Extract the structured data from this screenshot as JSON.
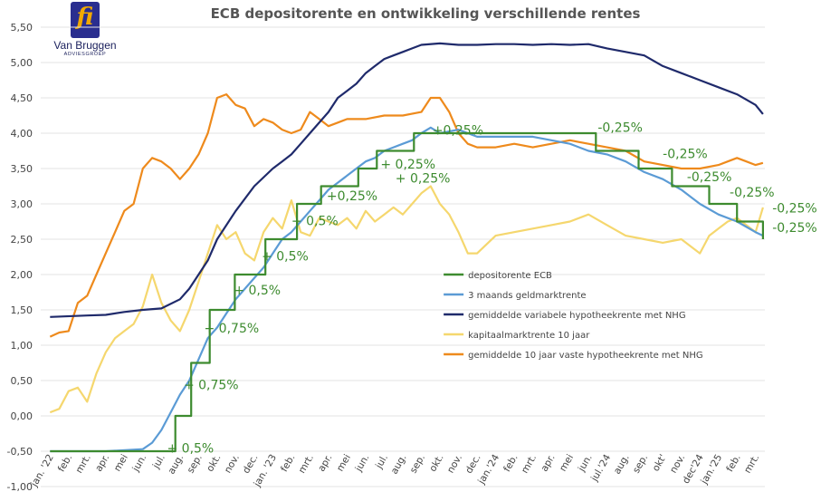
{
  "logo": {
    "mark": "fi",
    "name": "Van Bruggen",
    "sub": "ADVIESGROEP"
  },
  "chart_data": {
    "type": "line",
    "title": "ECB depositorente en ontwikkeling verschillende rentes",
    "xlabel": "",
    "ylabel": "",
    "ylim": [
      -1.0,
      5.5
    ],
    "y_ticks": [
      "-1,00",
      "-0,50",
      "0,00",
      "0,50",
      "1,00",
      "1,50",
      "2,00",
      "2,50",
      "3,00",
      "3,50",
      "4,00",
      "4,50",
      "5,00",
      "5,50"
    ],
    "x_ticks": [
      "jan. '22",
      "feb.",
      "mrt.",
      "apr.",
      "mei",
      "jun.",
      "jul.",
      "aug.",
      "sep.",
      "okt.",
      "nov.",
      "dec.",
      "jan. '23",
      "feb.",
      "mrt.",
      "apr.",
      "mei",
      "jun.",
      "jul.",
      "aug.",
      "sep.",
      "okt.",
      "nov.",
      "dec.",
      "jan.'24",
      "feb.",
      "mrt.",
      "apr.",
      "mei",
      "jun.",
      "jul.'24",
      "aug.",
      "sep.",
      "okt'",
      "nov.",
      "dec'24",
      "jan.'25",
      "feb.",
      "mrt."
    ],
    "grid": true,
    "legend_position": "right",
    "x_unit": "month index (0 = jan. '22)",
    "series": [
      {
        "name": "depositorente ECB",
        "color": "#3d8b2f",
        "step": true,
        "x": [
          0,
          6.75,
          7.6,
          8.6,
          9.95,
          11.6,
          13.3,
          14.6,
          16.6,
          17.6,
          19.6,
          20.6,
          29.4,
          31.7,
          33.5,
          35.5,
          37.0,
          38.4
        ],
        "y": [
          -0.5,
          0.0,
          0.75,
          1.5,
          2.0,
          2.5,
          3.0,
          3.25,
          3.5,
          3.75,
          4.0,
          4.0,
          3.75,
          3.5,
          3.25,
          3.0,
          2.75,
          2.5
        ]
      },
      {
        "name": "3 maands geldmarktrente",
        "color": "#5b9bd5",
        "x": [
          0,
          3,
          5,
          5.5,
          6,
          6.5,
          7,
          7.5,
          8,
          8.5,
          9,
          9.5,
          10,
          10.5,
          11,
          11.5,
          12,
          12.5,
          13,
          13.5,
          14,
          14.5,
          15,
          15.5,
          16,
          16.5,
          17,
          17.5,
          18,
          18.5,
          19,
          19.5,
          20,
          20.5,
          21,
          22,
          23,
          24,
          25,
          26,
          27,
          28,
          29,
          30,
          31,
          32,
          33,
          34,
          35,
          36,
          37,
          38,
          38.4
        ],
        "y": [
          -0.5,
          -0.5,
          -0.47,
          -0.38,
          -0.2,
          0.05,
          0.3,
          0.5,
          0.8,
          1.1,
          1.25,
          1.45,
          1.65,
          1.8,
          1.95,
          2.1,
          2.3,
          2.5,
          2.6,
          2.75,
          2.9,
          3.05,
          3.2,
          3.3,
          3.4,
          3.5,
          3.6,
          3.65,
          3.75,
          3.8,
          3.85,
          3.9,
          4.0,
          4.08,
          4.0,
          4.05,
          3.95,
          3.95,
          3.95,
          3.95,
          3.9,
          3.85,
          3.75,
          3.7,
          3.6,
          3.45,
          3.35,
          3.2,
          3.0,
          2.85,
          2.75,
          2.6,
          2.55
        ]
      },
      {
        "name": "gemiddelde variabele hypotheekrente met NHG",
        "color": "#1f2a6b",
        "x": [
          0,
          2,
          3,
          4,
          5,
          6,
          7,
          7.5,
          8,
          8.5,
          9,
          10,
          11,
          12,
          12.5,
          13,
          13.5,
          14,
          15,
          15.5,
          16,
          16.5,
          17,
          17.5,
          18,
          18.5,
          19,
          19.5,
          20,
          21,
          22,
          23,
          24,
          25,
          26,
          27,
          28,
          29,
          30,
          31,
          32,
          33,
          34,
          35,
          36,
          37,
          38,
          38.4
        ],
        "y": [
          1.4,
          1.42,
          1.43,
          1.47,
          1.5,
          1.52,
          1.65,
          1.8,
          2.0,
          2.2,
          2.5,
          2.9,
          3.25,
          3.5,
          3.6,
          3.7,
          3.85,
          4.0,
          4.3,
          4.5,
          4.6,
          4.7,
          4.85,
          4.95,
          5.05,
          5.1,
          5.15,
          5.2,
          5.25,
          5.27,
          5.25,
          5.25,
          5.26,
          5.26,
          5.25,
          5.26,
          5.25,
          5.26,
          5.2,
          5.15,
          5.1,
          4.95,
          4.85,
          4.75,
          4.65,
          4.55,
          4.4,
          4.27
        ]
      },
      {
        "name": "kapitaalmarktrente 10 jaar",
        "color": "#f5d76e",
        "x": [
          0,
          0.5,
          1,
          1.5,
          2,
          2.5,
          3,
          3.5,
          4,
          4.5,
          5,
          5.5,
          6,
          6.5,
          7,
          7.5,
          8,
          8.5,
          9,
          9.5,
          10,
          10.5,
          11,
          11.5,
          12,
          12.5,
          13,
          13.5,
          14,
          14.5,
          15,
          15.5,
          16,
          16.5,
          17,
          17.5,
          18,
          18.5,
          19,
          19.5,
          20,
          20.5,
          21,
          21.5,
          22,
          22.5,
          23,
          24,
          25,
          26,
          27,
          28,
          29,
          30,
          31,
          32,
          33,
          34,
          35,
          35.5,
          36,
          36.5,
          37,
          37.5,
          38,
          38.4
        ],
        "y": [
          0.05,
          0.1,
          0.35,
          0.4,
          0.2,
          0.6,
          0.9,
          1.1,
          1.2,
          1.3,
          1.55,
          2.0,
          1.6,
          1.35,
          1.2,
          1.5,
          1.9,
          2.3,
          2.7,
          2.5,
          2.6,
          2.3,
          2.2,
          2.6,
          2.8,
          2.65,
          3.05,
          2.6,
          2.55,
          2.8,
          2.75,
          2.7,
          2.8,
          2.65,
          2.9,
          2.75,
          2.85,
          2.95,
          2.85,
          3.0,
          3.15,
          3.25,
          3.0,
          2.85,
          2.6,
          2.3,
          2.3,
          2.55,
          2.6,
          2.65,
          2.7,
          2.75,
          2.85,
          2.7,
          2.55,
          2.5,
          2.45,
          2.5,
          2.3,
          2.55,
          2.65,
          2.75,
          2.8,
          2.7,
          2.6,
          2.95
        ]
      },
      {
        "name": "gemiddelde 10 jaar vaste hypotheekrente met NHG",
        "color": "#ee8a1c",
        "x": [
          0,
          0.5,
          1,
          1.5,
          2,
          2.5,
          3,
          3.5,
          4,
          4.5,
          5,
          5.5,
          6,
          6.5,
          7,
          7.5,
          8,
          8.5,
          9,
          9.5,
          10,
          10.5,
          11,
          11.5,
          12,
          12.5,
          13,
          13.5,
          14,
          14.5,
          15,
          15.5,
          16,
          17,
          18,
          19,
          20,
          20.5,
          21,
          21.5,
          22,
          22.5,
          23,
          24,
          25,
          26,
          27,
          28,
          29,
          30,
          31,
          32,
          33,
          34,
          35,
          36,
          36.5,
          37,
          37.5,
          38,
          38.4
        ],
        "y": [
          1.12,
          1.18,
          1.2,
          1.6,
          1.7,
          2.0,
          2.3,
          2.6,
          2.9,
          3.0,
          3.5,
          3.65,
          3.6,
          3.5,
          3.35,
          3.5,
          3.7,
          4.0,
          4.5,
          4.55,
          4.4,
          4.35,
          4.1,
          4.2,
          4.15,
          4.05,
          4.0,
          4.05,
          4.3,
          4.2,
          4.1,
          4.15,
          4.2,
          4.2,
          4.25,
          4.25,
          4.3,
          4.5,
          4.5,
          4.3,
          4.0,
          3.85,
          3.8,
          3.8,
          3.85,
          3.8,
          3.85,
          3.9,
          3.85,
          3.8,
          3.75,
          3.6,
          3.55,
          3.5,
          3.5,
          3.55,
          3.6,
          3.65,
          3.6,
          3.55,
          3.58
        ]
      }
    ],
    "annotations": [
      {
        "text": "+ 0,5%",
        "x": 6.3,
        "y": -0.52
      },
      {
        "text": "+ 0,75%",
        "x": 7.2,
        "y": 0.38
      },
      {
        "text": "+ 0,75%",
        "x": 8.3,
        "y": 1.18
      },
      {
        "text": "+ 0,5%",
        "x": 9.9,
        "y": 1.72
      },
      {
        "text": "+ 0,5%",
        "x": 11.4,
        "y": 2.2
      },
      {
        "text": "+ 0,5%",
        "x": 13.0,
        "y": 2.7
      },
      {
        "text": "+0,25%",
        "x": 14.9,
        "y": 3.05
      },
      {
        "text": "+ 0,25%",
        "x": 17.8,
        "y": 3.5
      },
      {
        "text": "+ 0,25%",
        "x": 18.6,
        "y": 3.3
      },
      {
        "text": "+0,25%",
        "x": 20.6,
        "y": 3.98
      },
      {
        "text": "-0,25%",
        "x": 29.5,
        "y": 4.02
      },
      {
        "text": "-0,25%",
        "x": 33.0,
        "y": 3.65
      },
      {
        "text": "-0,25%",
        "x": 34.3,
        "y": 3.32
      },
      {
        "text": "-0,25%",
        "x": 36.6,
        "y": 3.1
      },
      {
        "text": "-0,25%",
        "x": 38.9,
        "y": 2.88
      },
      {
        "text": "-0,25%",
        "x": 38.9,
        "y": 2.6
      }
    ]
  }
}
